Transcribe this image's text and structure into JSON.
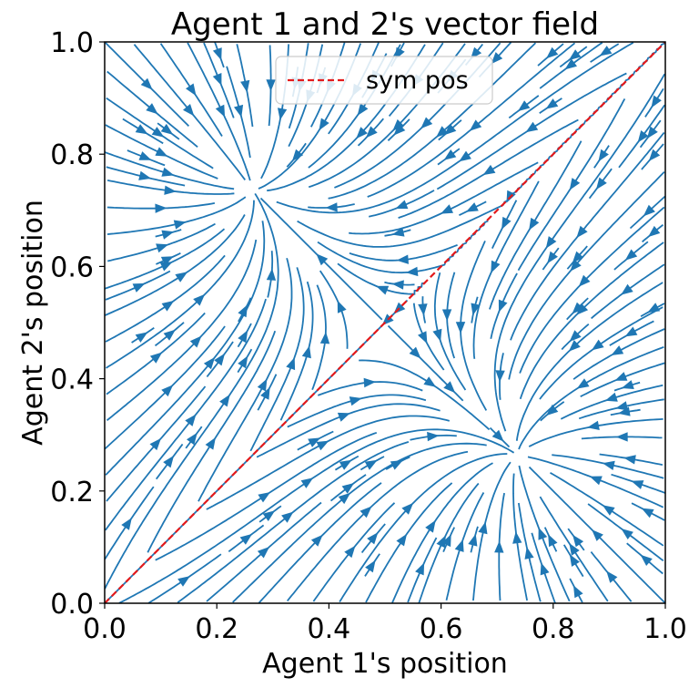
{
  "chart_data": {
    "type": "streamplot",
    "title": "Agent 1 and 2's vector field",
    "xlabel": "Agent 1's position",
    "ylabel": "Agent 2's position",
    "xlim": [
      0.0,
      1.0
    ],
    "ylim": [
      0.0,
      1.0
    ],
    "xticks": [
      "0.0",
      "0.2",
      "0.4",
      "0.6",
      "0.8",
      "1.0"
    ],
    "yticks": [
      "0.0",
      "0.2",
      "0.4",
      "0.6",
      "0.8",
      "1.0"
    ],
    "stream_color": "#1f77b4",
    "attractors": [
      {
        "x": 0.26,
        "y": 0.74
      },
      {
        "x": 0.74,
        "y": 0.26
      }
    ],
    "saddle": {
      "x": 0.5,
      "y": 0.5
    },
    "series": [
      {
        "name": "sym pos",
        "style": "dashed",
        "color": "#e41a1c",
        "x": [
          0.0,
          1.0
        ],
        "y": [
          0.0,
          1.0
        ]
      }
    ],
    "legend_position": "upper center",
    "grid": false
  }
}
